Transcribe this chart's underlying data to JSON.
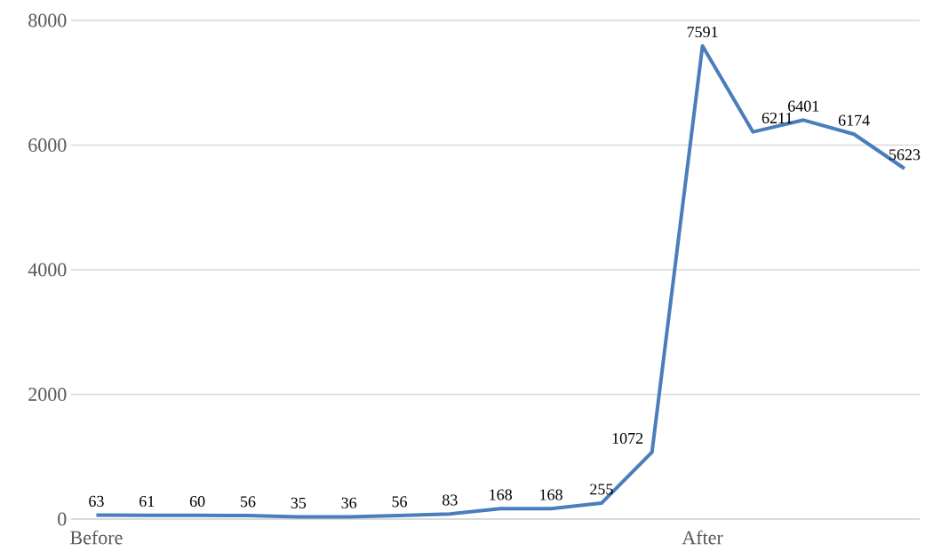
{
  "chart_data": {
    "type": "line",
    "categories": [
      "Before",
      null,
      null,
      null,
      null,
      null,
      null,
      null,
      null,
      null,
      null,
      null,
      "After",
      null,
      null,
      null,
      null
    ],
    "values": [
      63,
      61,
      60,
      56,
      35,
      36,
      56,
      83,
      168,
      168,
      255,
      1072,
      7591,
      6211,
      6401,
      6174,
      5623
    ],
    "color": "#4a7ebb",
    "ylim": [
      0,
      8000
    ],
    "yticks": [
      0,
      2000,
      4000,
      6000,
      8000
    ],
    "grid": "y",
    "data_labels": true,
    "marker": "none",
    "line_style": "solid"
  }
}
